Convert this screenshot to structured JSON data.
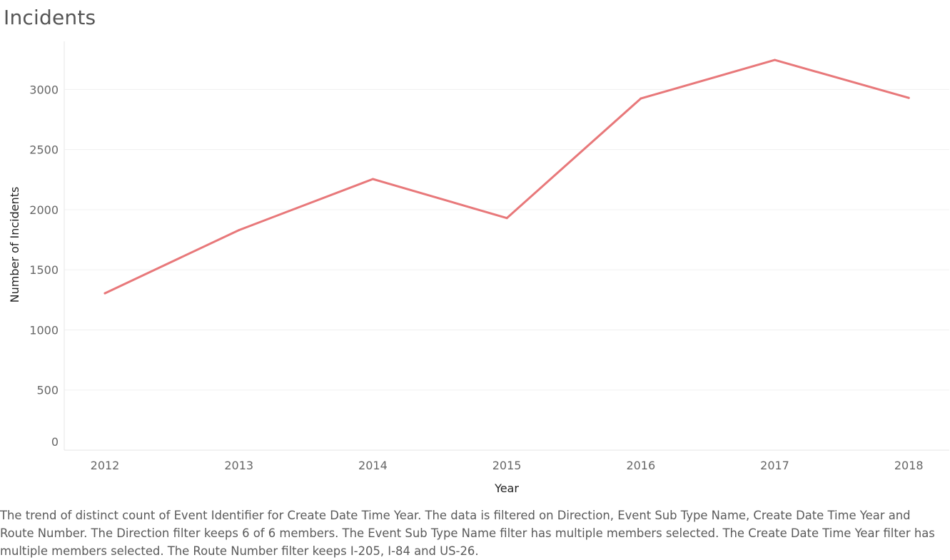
{
  "title": "Incidents",
  "caption": "The trend of distinct count of Event Identifier for Create Date Time Year. The data is filtered on Direction, Event Sub Type Name, Create Date Time Year and Route Number. The Direction filter keeps 6 of 6 members. The Event Sub Type Name filter has multiple members selected. The Create Date Time Year filter has multiple members selected. The Route Number filter keeps I-205, I-84 and US-26.",
  "chart_data": {
    "type": "line",
    "title": "Incidents",
    "xlabel": "Year",
    "ylabel": "Number of Incidents",
    "categories": [
      "2012",
      "2013",
      "2014",
      "2015",
      "2016",
      "2017",
      "2018"
    ],
    "series": [
      {
        "values": [
          1305,
          1830,
          2255,
          1930,
          2925,
          3245,
          2930
        ]
      }
    ],
    "ylim": [
      0,
      3400
    ],
    "yticks": [
      0,
      500,
      1000,
      1500,
      2000,
      2500,
      3000
    ],
    "grid": true,
    "colors": {
      "line": "#E8787A",
      "grid": "#f0f0f0",
      "axis": "#e6e6e6"
    }
  }
}
